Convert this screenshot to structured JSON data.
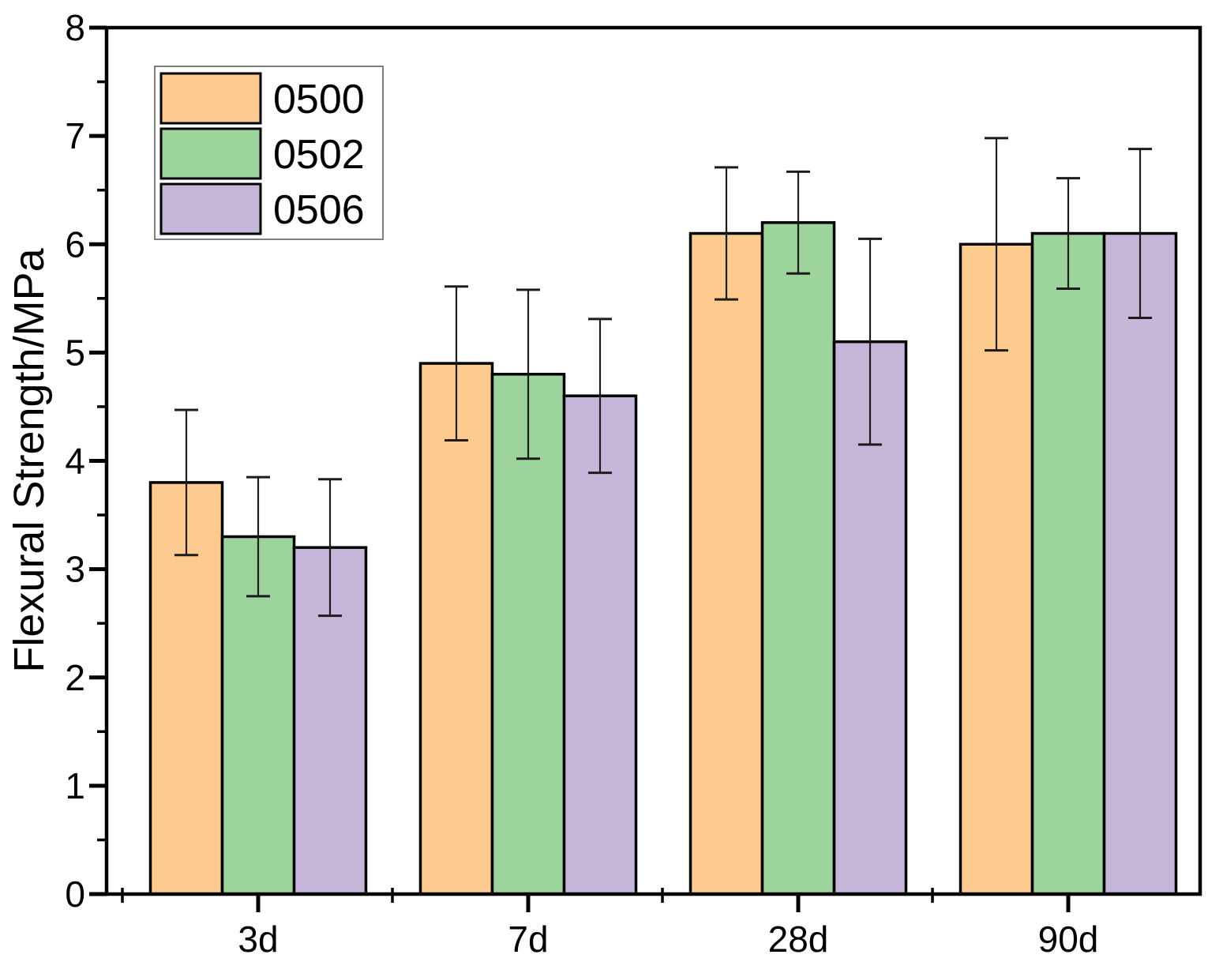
{
  "figure": {
    "background": "#ffffff",
    "frame_color": "#000000"
  },
  "chart_data": {
    "type": "bar",
    "title": "",
    "xlabel": "",
    "ylabel": "Flexural Strength/MPa",
    "ylim": [
      0,
      8
    ],
    "y_major_step": 1,
    "y_minor_step": 0.5,
    "y_tick_labels": [
      "0",
      "1",
      "2",
      "3",
      "4",
      "5",
      "6",
      "7",
      "8"
    ],
    "categories": [
      "3d",
      "7d",
      "28d",
      "90d"
    ],
    "series": [
      {
        "name": "0500",
        "color": "#fdcb90",
        "values": [
          3.8,
          4.9,
          6.1,
          6.0
        ],
        "errors": [
          0.67,
          0.71,
          0.61,
          0.98
        ]
      },
      {
        "name": "0502",
        "color": "#9cd49c",
        "values": [
          3.3,
          4.8,
          6.2,
          6.1
        ],
        "errors": [
          0.55,
          0.78,
          0.47,
          0.51
        ]
      },
      {
        "name": "0506",
        "color": "#c6b6d9",
        "values": [
          3.2,
          4.6,
          5.1,
          6.1
        ],
        "errors": [
          0.63,
          0.71,
          0.95,
          0.78
        ]
      }
    ],
    "bar_edge_color": "#000000",
    "error_bar_color": "#1c1c1c",
    "axis_color": "#000000",
    "grid": false,
    "legend": {
      "position": "top-left",
      "border_color": "#7f7f7f",
      "background": "#ffffff"
    }
  }
}
